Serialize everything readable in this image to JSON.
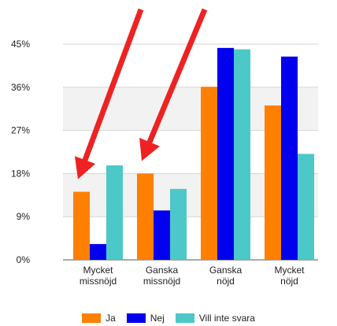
{
  "chart_data": {
    "type": "bar",
    "categories": [
      [
        "Mycket",
        "missnöjd"
      ],
      [
        "Ganska",
        "missnöjd"
      ],
      [
        "Ganska",
        "nöjd"
      ],
      [
        "Mycket",
        "nöjd"
      ]
    ],
    "series": [
      {
        "name": "Ja",
        "color": "#ff8000",
        "values": [
          14.2,
          18.0,
          36.1,
          32.2
        ]
      },
      {
        "name": "Nej",
        "color": "#0000ee",
        "values": [
          3.3,
          10.3,
          44.2,
          42.4
        ]
      },
      {
        "name": "Vill inte svara",
        "color": "#4cc8c8",
        "values": [
          19.7,
          14.8,
          43.9,
          22.1
        ]
      }
    ],
    "yticks": [
      "0%",
      "9%",
      "18%",
      "27%",
      "36%",
      "45%"
    ],
    "ytick_values": [
      0,
      9,
      18,
      27,
      36,
      45
    ],
    "ylim": [
      0,
      45
    ],
    "grid": true,
    "legend_position": "bottom",
    "annotations": [
      {
        "type": "arrow",
        "color": "#ee2222",
        "target_category": 0
      },
      {
        "type": "arrow",
        "color": "#ee2222",
        "target_category": 1
      }
    ]
  }
}
